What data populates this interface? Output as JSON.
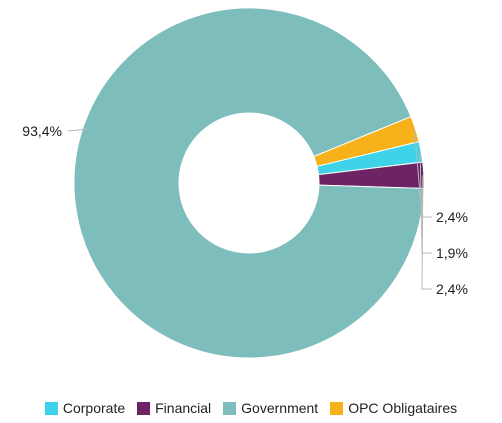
{
  "chart_data": {
    "type": "pie",
    "categories": [
      "Corporate",
      "Financial",
      "Government",
      "OPC Obligataires"
    ],
    "values": [
      1.9,
      2.4,
      93.4,
      2.4
    ],
    "labels": [
      "1,9%",
      "2,4%",
      "93,4%",
      "2,4%"
    ],
    "colors": [
      "#3fd3ea",
      "#6d2464",
      "#7dbdbb",
      "#f7b11a"
    ],
    "donut": true,
    "legend_position": "bottom"
  }
}
